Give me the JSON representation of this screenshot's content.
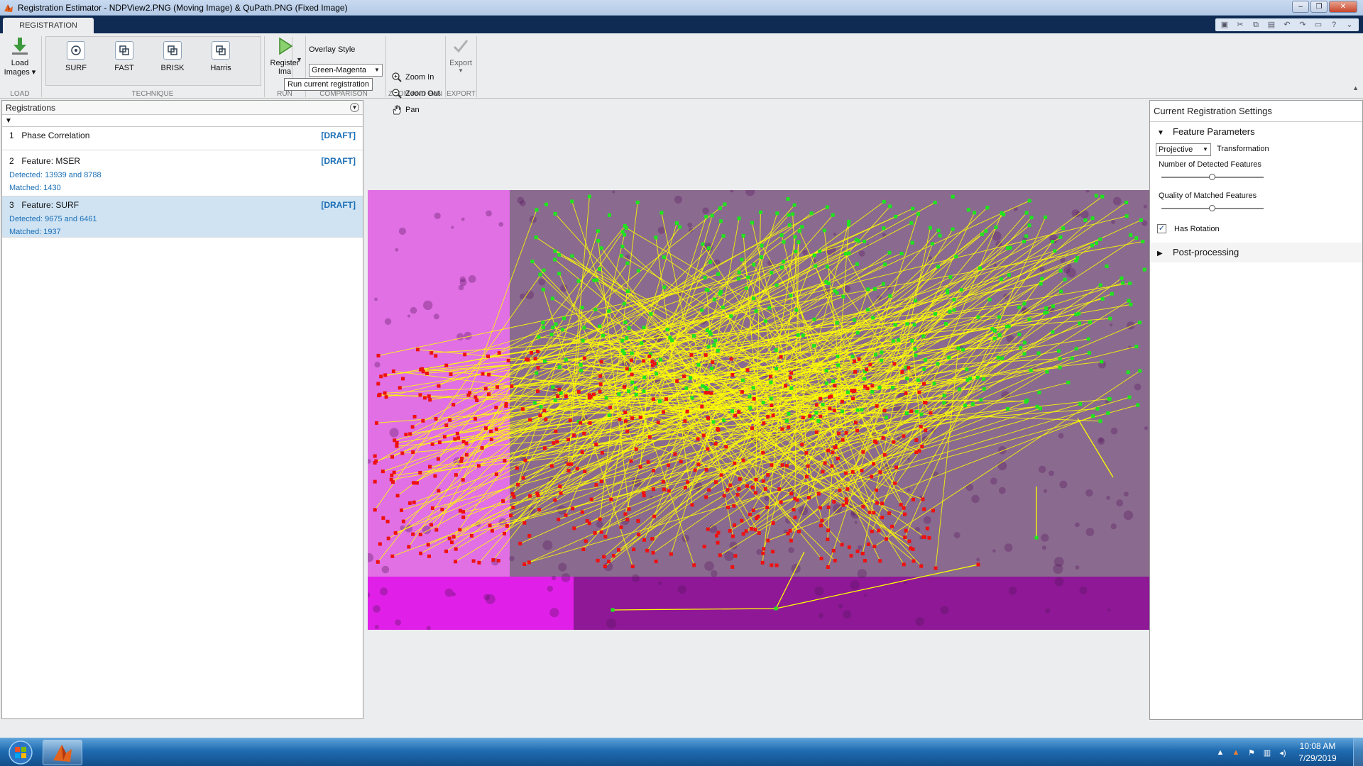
{
  "window": {
    "title": "Registration Estimator - NDPView2.PNG (Moving Image) & QuPath.PNG (Fixed Image)",
    "minimize": "–",
    "restore": "❐",
    "close": "✕"
  },
  "tabs": [
    {
      "label": "REGISTRATION"
    }
  ],
  "quick_access": [
    "save-icon",
    "cut-icon",
    "copy-icon",
    "paste-icon",
    "undo-icon",
    "redo-icon",
    "layout-icon",
    "help-icon",
    "minimize-ribbon-icon"
  ],
  "ribbon": {
    "load": {
      "button_line1": "Load",
      "button_line2": "Images ▾",
      "section": "LOAD"
    },
    "technique": {
      "section": "TECHNIQUE",
      "buttons": [
        {
          "label": "SURF"
        },
        {
          "label": "FAST"
        },
        {
          "label": "BRISK"
        },
        {
          "label": "Harris"
        }
      ]
    },
    "run": {
      "button_line1": "Register",
      "button_line2": "Ima",
      "section": "RUN",
      "tooltip": "Run current registration"
    },
    "comparison": {
      "label": "Overlay Style",
      "value": "Green-Magenta",
      "section": "COMPARISON"
    },
    "zoom": {
      "zoom_in": "Zoom In",
      "zoom_out": "Zoom Out",
      "pan": "Pan",
      "section": "ZOOM AND PAN"
    },
    "export": {
      "label": "Export",
      "section": "EXPORT"
    }
  },
  "registrations": {
    "header": "Registrations",
    "items": [
      {
        "num": "1",
        "name": "Phase Correlation",
        "status": "[DRAFT]",
        "detected": "",
        "matched": ""
      },
      {
        "num": "2",
        "name": "Feature: MSER",
        "status": "[DRAFT]",
        "detected": "Detected: 13939 and 8788",
        "matched": "Matched: 1430"
      },
      {
        "num": "3",
        "name": "Feature: SURF",
        "status": "[DRAFT]",
        "detected": "Detected: 9675 and 6461",
        "matched": "Matched: 1937"
      }
    ]
  },
  "settings": {
    "title": "Current Registration Settings",
    "feature_parameters": "Feature Parameters",
    "transformation_value": "Projective",
    "transformation_label": "Transformation",
    "detected_features_label": "Number of Detected Features",
    "detected_features_level": 0.5,
    "matched_quality_label": "Quality of Matched Features",
    "matched_quality_level": 0.5,
    "has_rotation_label": "Has Rotation",
    "has_rotation_checked": "✓",
    "post_processing": "Post-processing"
  },
  "colors": {
    "tissue_magenta": "#d24fd6",
    "dark_magenta": "#9c1fa0",
    "feature_green": "#1ee61e",
    "feature_red": "#ee1111",
    "match_line": "#ffff00",
    "draft_blue": "#1b6fb5",
    "tab_strip": "#0f2b53"
  },
  "taskbar": {
    "time": "10:08 AM",
    "date": "7/29/2019",
    "tray_icons": [
      "tray-up-arrow-icon",
      "matlab-tray-icon",
      "flag-icon",
      "network-icon",
      "volume-icon"
    ]
  }
}
